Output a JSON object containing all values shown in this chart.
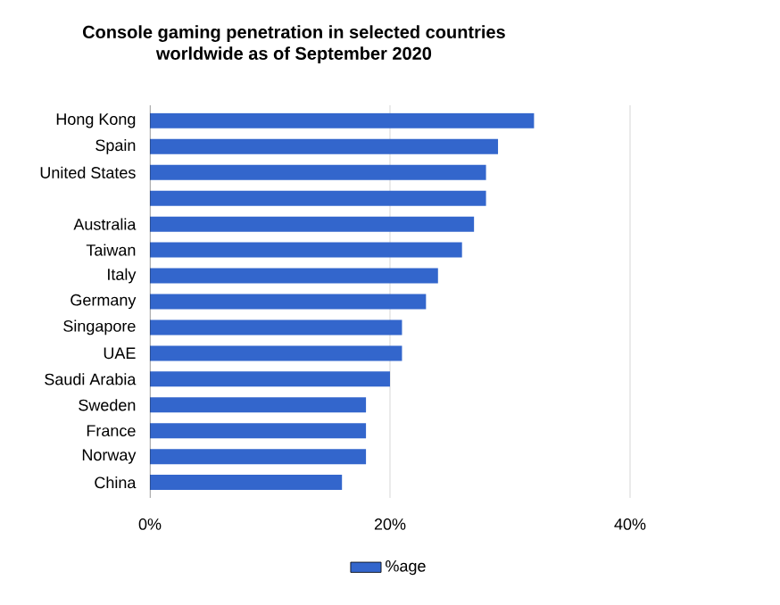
{
  "chart_data": {
    "type": "bar",
    "orientation": "horizontal",
    "title": "Console gaming penetration in selected countries worldwide as of September 2020",
    "categories": [
      "Hong Kong",
      "Spain",
      "United States",
      null,
      "Australia",
      "Taiwan",
      "Italy",
      "Germany",
      "Singapore",
      "UAE",
      "Saudi Arabia",
      "Sweden",
      "France",
      "Norway",
      "China"
    ],
    "series": [
      {
        "name": "%age",
        "color": "#3366cc",
        "values": [
          32,
          29,
          28,
          28,
          27,
          26,
          24,
          23,
          21,
          21,
          20,
          18,
          18,
          18,
          16
        ]
      }
    ],
    "xlim": [
      0,
      40
    ],
    "xticks": [
      {
        "value": 0,
        "label": "0%"
      },
      {
        "value": 20,
        "label": "20%"
      },
      {
        "value": 40,
        "label": "40%"
      }
    ],
    "grid": "x",
    "legend": "bottom"
  }
}
